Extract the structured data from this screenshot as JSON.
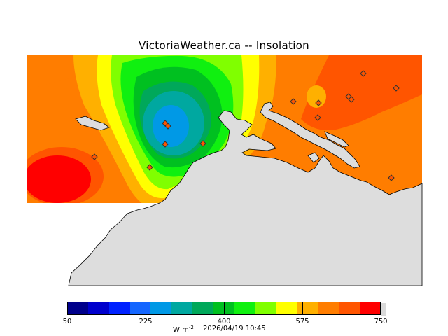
{
  "title": "VictoriaWeather.ca -- Insolation",
  "colorbar": {
    "colors": [
      "#00008b",
      "#0000cd",
      "#0022ff",
      "#1466ff",
      "#0099e6",
      "#00a8a0",
      "#00a85a",
      "#00c020",
      "#10f010",
      "#80ff00",
      "#ffff00",
      "#ffb000",
      "#ff7d00",
      "#ff5500",
      "#ff0000"
    ],
    "tick_labels": [
      "50",
      "225",
      "400",
      "575",
      "750"
    ]
  },
  "units": {
    "main": "W m",
    "exponent": "-2"
  },
  "timestamp": "2026/04/19 10:45",
  "colors": {
    "land": "#dddddd",
    "coast": "#000000",
    "station": "#333333"
  }
}
